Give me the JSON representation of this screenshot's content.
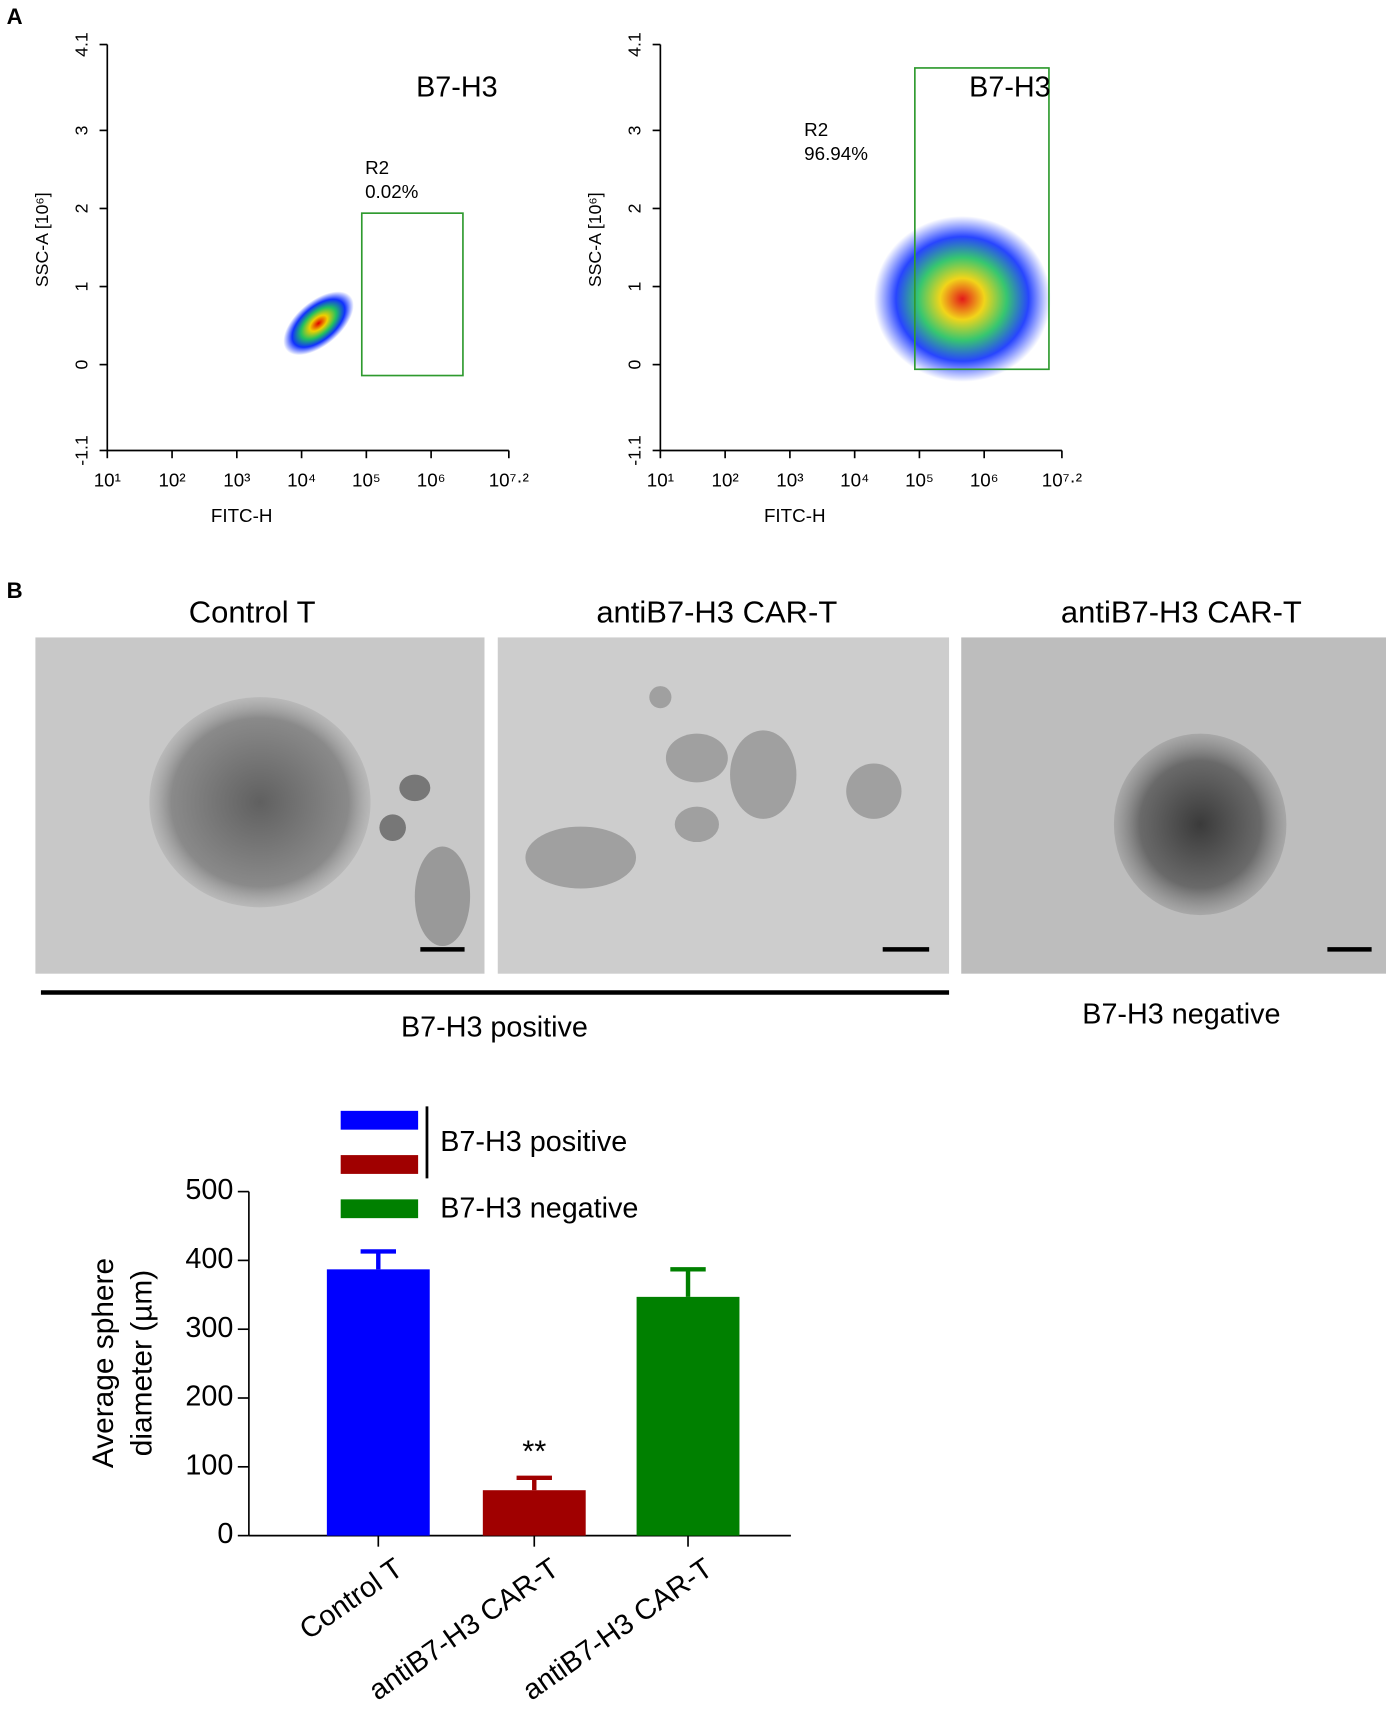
{
  "panel_labels": [
    "A",
    "B"
  ],
  "chart_data": [
    {
      "type": "density",
      "title": "B7-H3",
      "xlabel": "FITC-H",
      "ylabel": "SSC-A [10⁶]",
      "xscale": "log",
      "xlim": [
        10,
        15848932
      ],
      "xticks": [
        {
          "value": 10,
          "label": "10¹"
        },
        {
          "value": 100,
          "label": "10²"
        },
        {
          "value": 1000,
          "label": "10³"
        },
        {
          "value": 10000,
          "label": "10⁴"
        },
        {
          "value": 100000,
          "label": "10⁵"
        },
        {
          "value": 1000000,
          "label": "10⁶"
        },
        {
          "value": 15848932,
          "label": "10⁷·²"
        }
      ],
      "ylim": [
        -1.1,
        4.1
      ],
      "yticks": [
        -1.1,
        0,
        1,
        2,
        3,
        4.1
      ],
      "gate": {
        "name": "R2",
        "percent": "0.02%",
        "x": [
          85000,
          3100000
        ],
        "y": [
          -0.14,
          1.94
        ],
        "color": "#2e9a2e"
      }
    },
    {
      "type": "density",
      "title": "B7-H3",
      "xlabel": "FITC-H",
      "ylabel": "SSC-A [10⁶]",
      "xscale": "log",
      "xlim": [
        10,
        15848932
      ],
      "xticks": [
        {
          "value": 10,
          "label": "10¹"
        },
        {
          "value": 100,
          "label": "10²"
        },
        {
          "value": 1000,
          "label": "10³"
        },
        {
          "value": 10000,
          "label": "10⁴"
        },
        {
          "value": 100000,
          "label": "10⁵"
        },
        {
          "value": 1000000,
          "label": "10⁶"
        },
        {
          "value": 15848932,
          "label": "10⁷·²"
        }
      ],
      "ylim": [
        -1.1,
        4.1
      ],
      "yticks": [
        -1.1,
        0,
        1,
        2,
        3,
        4.1
      ],
      "gate": {
        "name": "R2",
        "percent": "96.94%",
        "x": [
          85000,
          10000000
        ],
        "y": [
          -0.06,
          3.8
        ],
        "color": "#2e9a2e"
      }
    },
    {
      "type": "bar",
      "ylabel": [
        "Average sphere",
        "diameter (µm)"
      ],
      "categories": [
        "Control T",
        "antiB7-H3 CAR-T",
        "antiB7-H3 CAR-T"
      ],
      "values": [
        387,
        66,
        347
      ],
      "errors": [
        26,
        18,
        40
      ],
      "colors": [
        "#0000ff",
        "#a00000",
        "#008000"
      ],
      "annotations": [
        "",
        "**",
        ""
      ],
      "ylim": [
        0,
        500
      ],
      "yticks": [
        0,
        100,
        200,
        300,
        400,
        500
      ],
      "legend": [
        {
          "label": "B7-H3 positive",
          "colors": [
            "#0000ff",
            "#a00000"
          ]
        },
        {
          "label": "B7-H3 negative",
          "colors": [
            "#008000"
          ]
        }
      ]
    }
  ],
  "micrographs": {
    "titles": [
      "Control T",
      "antiB7-H3 CAR-T",
      "antiB7-H3 CAR-T"
    ],
    "groups": [
      "B7-H3 positive",
      "B7-H3 negative"
    ]
  }
}
